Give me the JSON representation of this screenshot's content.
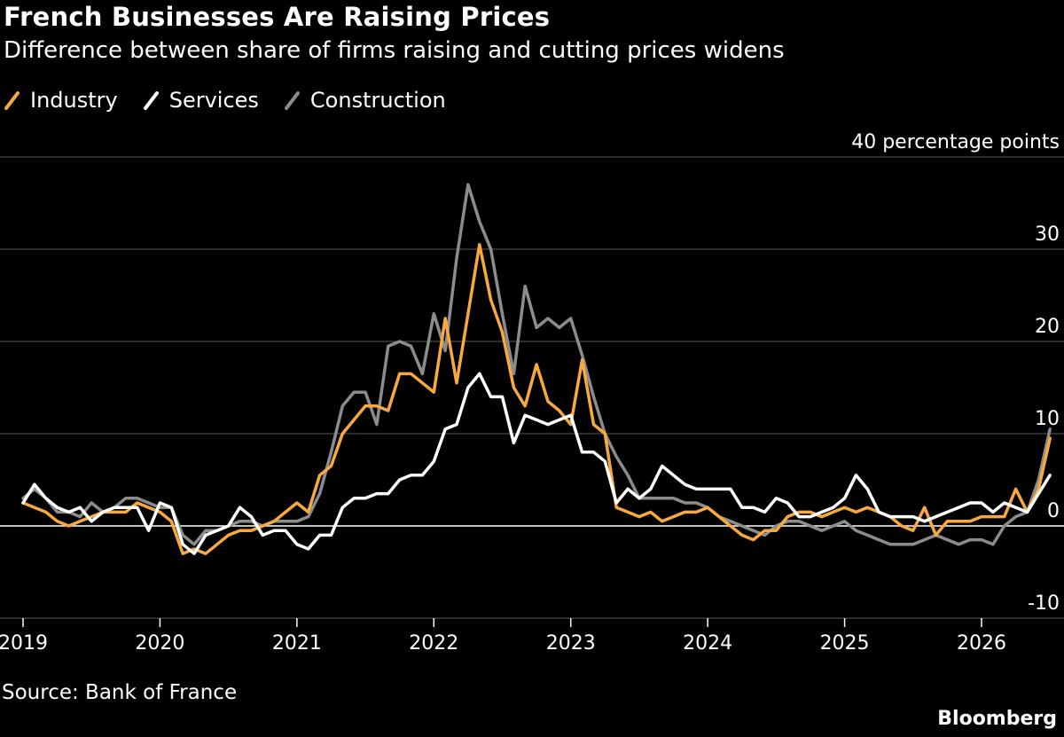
{
  "header": {
    "title": "French Businesses Are Raising Prices",
    "subtitle": "Difference between share of firms raising and cutting prices widens"
  },
  "footer": {
    "source": "Source: Bank of France",
    "brand": "Bloomberg"
  },
  "colors": {
    "background": "#000000",
    "industry": "#f7a83e",
    "services": "#ffffff",
    "construction": "#8c8c8c",
    "grid": "#5a5a5a",
    "zero_line": "#ffffff",
    "text": "#ffffff"
  },
  "chart_data": {
    "type": "line",
    "title": "French Businesses Are Raising Prices",
    "subtitle": "Difference between share of firms raising and cutting prices widens",
    "y_unit_label": "40 percentage points",
    "ylim": [
      -10,
      40
    ],
    "y_ticks": [
      40,
      30,
      20,
      10,
      0,
      -10
    ],
    "y_tick_labels": [
      "40 percentage points",
      "30",
      "20",
      "10",
      "0",
      "-10"
    ],
    "xlim": [
      2019,
      2026.55
    ],
    "x_ticks": [
      2019,
      2020,
      2021,
      2022,
      2023,
      2024,
      2025,
      2026
    ],
    "x_tick_labels": [
      "2019",
      "2020",
      "2021",
      "2022",
      "2023",
      "2024",
      "2025",
      "2026"
    ],
    "grid": true,
    "legend_position": "top-left",
    "x_start": "2019-01",
    "x_frequency": "monthly",
    "series": [
      {
        "name": "Industry",
        "color": "#f7a83e",
        "values": [
          2.5,
          2.0,
          1.5,
          0.5,
          0,
          0.5,
          1.0,
          1.5,
          1.5,
          1.5,
          2.5,
          2.0,
          1.5,
          0.5,
          -3.0,
          -2.5,
          -3.0,
          -2.0,
          -1.0,
          -0.5,
          -0.5,
          0,
          0.5,
          1.5,
          2.5,
          1.5,
          5.5,
          6.5,
          10.0,
          11.5,
          13.0,
          13.0,
          12.5,
          16.5,
          16.5,
          15.5,
          14.5,
          22.5,
          15.5,
          23.0,
          30.5,
          24.5,
          21.0,
          15.0,
          13.0,
          17.5,
          13.5,
          12.5,
          11.0,
          18.0,
          11.0,
          10.0,
          2.0,
          1.5,
          1.0,
          1.5,
          0.5,
          1.0,
          1.5,
          1.5,
          2.0,
          1.0,
          0,
          -1.0,
          -1.5,
          -0.5,
          -0.5,
          1.0,
          1.5,
          1.5,
          1.0,
          1.5,
          2.0,
          1.5,
          2.0,
          1.5,
          1.0,
          0,
          -0.5,
          2.0,
          -1.0,
          0.5,
          0.5,
          0.5,
          1.0,
          1.0,
          1.0,
          4.0,
          1.5,
          4.0,
          9.5
        ]
      },
      {
        "name": "Services",
        "color": "#ffffff",
        "values": [
          2.5,
          4.5,
          3.0,
          2.0,
          1.5,
          2.0,
          0.5,
          1.5,
          2.0,
          2.0,
          2.0,
          -0.5,
          2.5,
          2.0,
          -2.0,
          -3.0,
          -1.0,
          -0.5,
          0,
          2.0,
          1.0,
          -1.0,
          -0.5,
          -0.5,
          -2.0,
          -2.5,
          -1.0,
          -1.0,
          2.0,
          3.0,
          3.0,
          3.5,
          3.5,
          5.0,
          5.5,
          5.5,
          7.0,
          10.5,
          11.0,
          15.0,
          16.5,
          14.0,
          14.0,
          9.0,
          12.0,
          11.5,
          11.0,
          11.5,
          12.0,
          8.0,
          8.0,
          7.0,
          2.5,
          4.0,
          3.0,
          4.0,
          6.5,
          5.5,
          4.5,
          4.0,
          4.0,
          4.0,
          4.0,
          2.0,
          2.0,
          1.5,
          3.0,
          2.5,
          1.0,
          1.0,
          1.5,
          2.0,
          3.0,
          5.5,
          4.0,
          1.5,
          1.0,
          1.0,
          1.0,
          0.5,
          1.0,
          1.5,
          2.0,
          2.5,
          2.5,
          1.5,
          2.5,
          2.0,
          1.5,
          3.5,
          5.5
        ]
      },
      {
        "name": "Construction",
        "color": "#8c8c8c",
        "values": [
          3.0,
          4.0,
          3.0,
          1.5,
          1.5,
          1.0,
          2.5,
          1.5,
          2.0,
          3.0,
          3.0,
          2.5,
          2.0,
          2.0,
          -1.0,
          -2.0,
          -0.5,
          -0.5,
          0,
          0.5,
          0.5,
          0,
          0.5,
          0.5,
          0.5,
          1.0,
          3.5,
          8.0,
          13.0,
          14.5,
          14.5,
          11.0,
          19.5,
          20.0,
          19.5,
          16.5,
          23.0,
          19.0,
          29.0,
          37.0,
          33.0,
          30.0,
          23.0,
          16.5,
          26.0,
          21.5,
          22.5,
          21.5,
          22.5,
          18.5,
          14.0,
          10.0,
          7.5,
          5.5,
          3.0,
          3.0,
          3.0,
          3.0,
          2.5,
          2.5,
          2.0,
          1.0,
          0.5,
          0,
          -0.5,
          -1.0,
          0,
          0.5,
          0.5,
          0,
          -0.5,
          0,
          0.5,
          -0.5,
          -1.0,
          -1.5,
          -2.0,
          -2.0,
          -2.0,
          -1.5,
          -1.0,
          -1.5,
          -2.0,
          -1.5,
          -1.5,
          -2.0,
          0,
          1.0,
          1.5,
          5.0,
          10.5
        ]
      }
    ]
  }
}
